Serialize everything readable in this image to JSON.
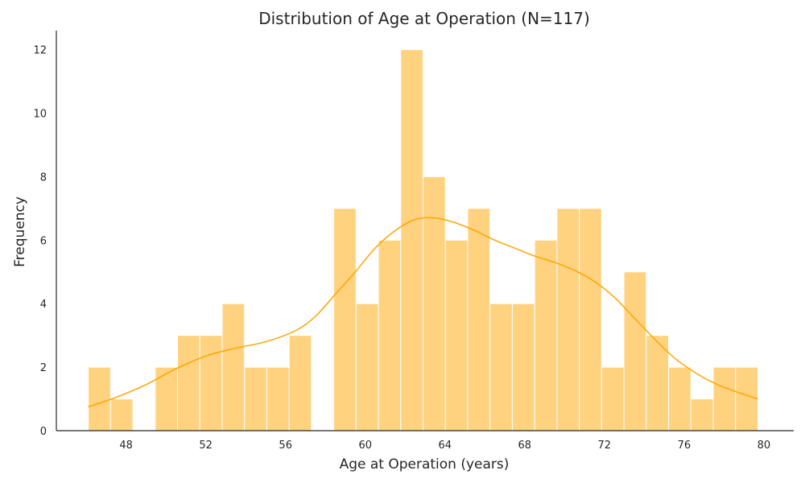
{
  "chart_data": {
    "type": "bar",
    "subtype": "histogram",
    "title": "Distribution of Age at Operation (N=117)",
    "xlabel": "Age at Operation (years)",
    "ylabel": "Frequency",
    "xlim": [
      44.5,
      81.5
    ],
    "ylim": [
      0,
      12.6
    ],
    "xticks": [
      48,
      52,
      56,
      60,
      64,
      68,
      72,
      76,
      80
    ],
    "yticks": [
      0,
      2,
      4,
      6,
      8,
      10,
      12
    ],
    "bin_edges": [
      46.1,
      47.22,
      48.34,
      49.46,
      50.58,
      51.7,
      52.82,
      53.94,
      55.06,
      56.18,
      57.3,
      58.42,
      59.54,
      60.66,
      61.78,
      62.9,
      64.02,
      65.14,
      66.26,
      67.38,
      68.5,
      69.62,
      70.74,
      71.86,
      72.98,
      74.1,
      75.22,
      76.34,
      77.46,
      78.58,
      79.7
    ],
    "counts": [
      2,
      1,
      0,
      2,
      3,
      3,
      4,
      2,
      2,
      3,
      0,
      7,
      4,
      6,
      12,
      8,
      6,
      7,
      4,
      4,
      6,
      7,
      7,
      2,
      5,
      3,
      2,
      1,
      2,
      2
    ],
    "kde": {
      "x": [
        46.1,
        47.5,
        49.0,
        50.5,
        52.0,
        53.5,
        55.0,
        56.5,
        57.5,
        58.5,
        59.5,
        60.5,
        61.5,
        62.5,
        63.5,
        64.5,
        65.5,
        66.5,
        67.5,
        68.5,
        69.5,
        70.5,
        71.5,
        72.5,
        73.5,
        74.5,
        75.5,
        76.5,
        77.5,
        78.5,
        79.7
      ],
      "y": [
        0.75,
        1.05,
        1.45,
        1.95,
        2.35,
        2.6,
        2.8,
        3.15,
        3.6,
        4.3,
        5.0,
        5.75,
        6.3,
        6.65,
        6.7,
        6.55,
        6.3,
        6.0,
        5.75,
        5.5,
        5.3,
        5.05,
        4.7,
        4.2,
        3.55,
        2.9,
        2.3,
        1.85,
        1.5,
        1.25,
        1.0
      ]
    },
    "colors": {
      "bar": "#ffd27f",
      "bar_edge": "#ffffff",
      "kde": "#ffa500",
      "axis": "#262626"
    },
    "grid": false,
    "legend": "none"
  }
}
